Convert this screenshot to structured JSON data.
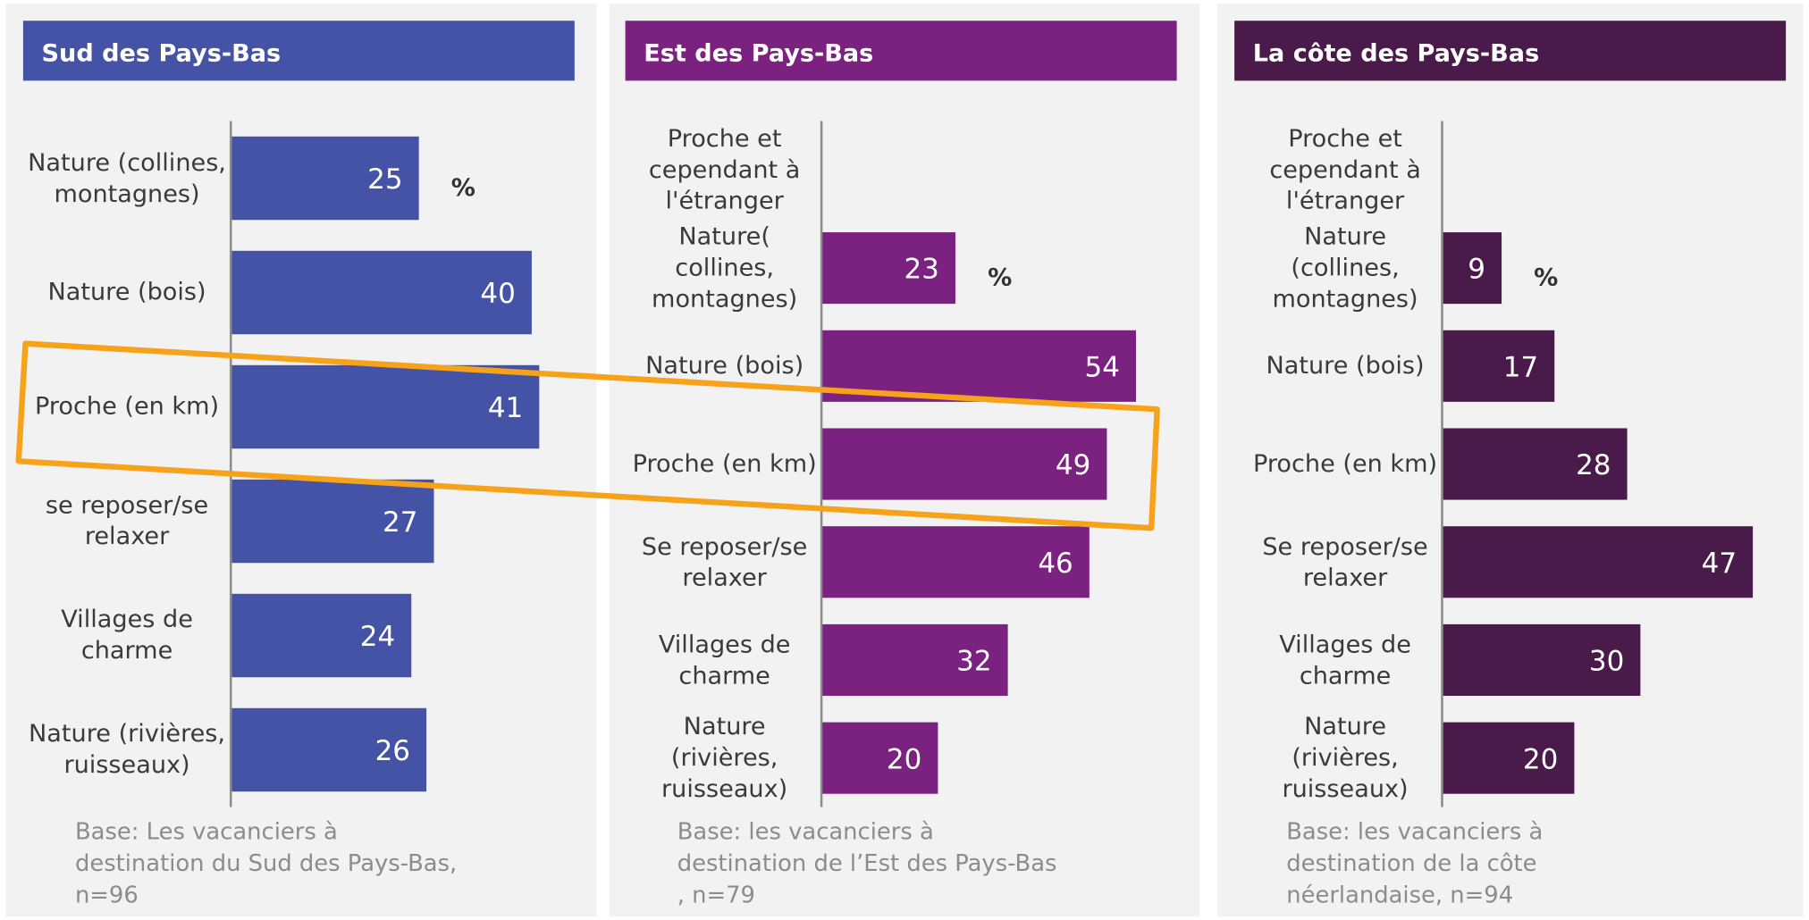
{
  "chart_data": [
    {
      "type": "bar",
      "orientation": "horizontal",
      "title": "Sud des Pays-Bas",
      "header_color": "#4553a6",
      "color": "#4553a6",
      "categories": [
        "Nature (collines, montagnes)",
        "Nature (bois)",
        "Proche (en km)",
        "se reposer/se relaxer",
        "Villages de charme",
        "Nature (rivières, ruisseaux)"
      ],
      "values": [
        25,
        40,
        41,
        27,
        24,
        26
      ],
      "unit": "%",
      "xlim": [
        0,
        46
      ],
      "footnote_lines": [
        "Base: Les vacanciers à",
        "destination du Sud des Pays-Bas,",
        "n=96"
      ]
    },
    {
      "type": "bar",
      "orientation": "horizontal",
      "title": "Est des Pays-Bas",
      "header_color": "#7b2180",
      "color": "#7b2180",
      "categories": [
        "Proche et cependant à l'étranger",
        "Nature( collines, montagnes)",
        "Nature (bois)",
        "Proche (en km)",
        "Se reposer/se relaxer",
        "Villages de charme",
        "Nature (rivières, ruisseaux)"
      ],
      "values": [
        null,
        23,
        54,
        49,
        46,
        32,
        20
      ],
      "unit": "%",
      "xlim": [
        0,
        61
      ],
      "footnote_lines": [
        "Base: les vacanciers à",
        "destination de l’Est des Pays-Bas",
        ", n=79"
      ]
    },
    {
      "type": "bar",
      "orientation": "horizontal",
      "title": "La côte des Pays-Bas",
      "header_color": "#4a1a4a",
      "color": "#4a1a4a",
      "categories": [
        "Proche et cependant à l'étranger",
        "Nature (collines, montagnes)",
        "Nature (bois)",
        "Proche (en km)",
        "Se reposer/se relaxer",
        "Villages de charme",
        "Nature (rivières, ruisseaux)"
      ],
      "values": [
        null,
        9,
        17,
        28,
        47,
        30,
        20
      ],
      "unit": "%",
      "xlim": [
        0,
        52
      ],
      "footnote_lines": [
        "Base: les vacanciers à",
        "destination de la côte",
        "néerlandaise, n=94"
      ]
    }
  ]
}
